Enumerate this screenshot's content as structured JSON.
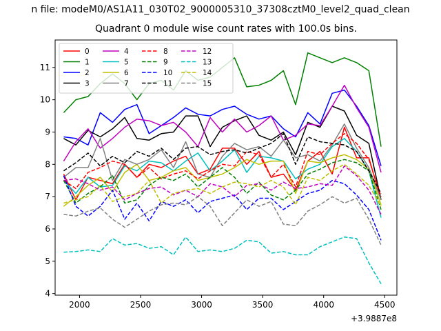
{
  "suptitle": "n file: modeM0/AS1A11_030T02_9000005310_37308cztM0_level2_quad_clean",
  "chart_data": {
    "type": "line",
    "title": "Quadrant 0 module wise count rates with 100.0s bins.",
    "xlabel": "",
    "ylabel": "",
    "x_offset_label": "+3.9887e8",
    "xlim": [
      1800,
      4600
    ],
    "ylim": [
      3.95,
      11.85
    ],
    "xticks": [
      "2000",
      "2500",
      "3000",
      "3500",
      "4000",
      "4500"
    ],
    "yticks": [
      "4",
      "5",
      "6",
      "7",
      "8",
      "9",
      "10",
      "11"
    ],
    "grid": false,
    "legend_position": "upper-left",
    "legend_columns": 4,
    "x": [
      1870,
      1970,
      2070,
      2170,
      2270,
      2370,
      2470,
      2570,
      2670,
      2770,
      2870,
      2970,
      3070,
      3170,
      3270,
      3370,
      3470,
      3570,
      3670,
      3770,
      3870,
      3970,
      4070,
      4170,
      4270,
      4370,
      4470
    ],
    "series": [
      {
        "name": "0",
        "color": "#ff0000",
        "dash": "solid",
        "values": [
          7.7,
          6.9,
          7.6,
          7.5,
          7.4,
          8.0,
          7.6,
          8.0,
          7.9,
          8.1,
          8.25,
          7.7,
          7.85,
          8.5,
          8.5,
          8.0,
          8.4,
          7.6,
          7.7,
          7.2,
          8.1,
          8.4,
          7.7,
          9.15,
          8.2,
          8.2,
          6.9
        ]
      },
      {
        "name": "1",
        "color": "#008000",
        "dash": "solid",
        "values": [
          9.6,
          10.0,
          10.1,
          10.5,
          10.8,
          10.5,
          10.0,
          10.5,
          10.6,
          10.3,
          10.9,
          10.6,
          10.7,
          11.0,
          11.3,
          10.4,
          10.45,
          10.6,
          10.9,
          9.85,
          11.45,
          11.3,
          11.15,
          11.3,
          11.15,
          10.9,
          8.55
        ]
      },
      {
        "name": "2",
        "color": "#0000ff",
        "dash": "solid",
        "values": [
          8.85,
          8.8,
          8.6,
          9.6,
          9.3,
          9.7,
          9.85,
          8.95,
          9.2,
          9.45,
          9.75,
          9.55,
          9.5,
          9.7,
          9.8,
          9.55,
          9.4,
          9.5,
          9.1,
          8.85,
          9.6,
          9.25,
          10.2,
          10.3,
          9.8,
          9.2,
          7.95
        ]
      },
      {
        "name": "3",
        "color": "#000000",
        "dash": "solid",
        "values": [
          8.8,
          8.6,
          9.05,
          8.85,
          9.1,
          9.45,
          8.8,
          8.75,
          8.95,
          9.0,
          9.5,
          9.5,
          8.55,
          9.15,
          9.35,
          9.5,
          8.9,
          8.75,
          9.0,
          8.3,
          9.3,
          9.15,
          9.8,
          9.65,
          8.9,
          8.65,
          6.9
        ]
      },
      {
        "name": "4",
        "color": "#bf00bf",
        "dash": "solid",
        "values": [
          8.1,
          8.7,
          9.1,
          8.5,
          8.8,
          9.15,
          9.4,
          9.35,
          9.2,
          9.3,
          9.0,
          8.55,
          9.45,
          9.0,
          9.4,
          9.0,
          9.2,
          9.5,
          8.75,
          8.9,
          9.25,
          9.2,
          9.8,
          10.45,
          9.75,
          9.15,
          7.75
        ]
      },
      {
        "name": "5",
        "color": "#00bfbf",
        "dash": "solid",
        "values": [
          7.5,
          7.1,
          7.6,
          7.3,
          7.35,
          7.95,
          7.8,
          8.1,
          8.05,
          7.8,
          8.1,
          8.35,
          7.8,
          8.1,
          8.45,
          7.75,
          8.25,
          8.2,
          8.1,
          7.55,
          7.85,
          8.0,
          8.55,
          8.8,
          8.4,
          7.8,
          6.35
        ]
      },
      {
        "name": "6",
        "color": "#bfbf00",
        "dash": "solid",
        "values": [
          6.7,
          7.0,
          7.35,
          7.6,
          7.15,
          7.75,
          8.0,
          7.5,
          7.6,
          7.8,
          7.9,
          7.5,
          7.6,
          7.7,
          7.9,
          8.15,
          8.0,
          8.1,
          8.1,
          7.1,
          8.1,
          8.05,
          8.2,
          8.3,
          8.15,
          7.85,
          6.75
        ]
      },
      {
        "name": "7",
        "color": "#808080",
        "dash": "solid",
        "values": [
          7.6,
          7.9,
          7.9,
          8.8,
          7.5,
          8.15,
          8.0,
          8.15,
          8.45,
          7.9,
          8.7,
          7.7,
          7.6,
          8.25,
          8.65,
          8.45,
          8.55,
          8.25,
          8.75,
          8.2,
          8.3,
          8.1,
          8.6,
          9.25,
          8.5,
          7.9,
          6.9
        ]
      },
      {
        "name": "8",
        "color": "#ff0000",
        "dash": "dashed",
        "values": [
          7.5,
          7.25,
          7.75,
          7.9,
          8.1,
          8.0,
          7.6,
          7.9,
          7.55,
          7.7,
          7.8,
          7.55,
          7.8,
          8.0,
          7.95,
          8.4,
          8.3,
          7.6,
          8.0,
          7.3,
          8.4,
          8.3,
          8.65,
          8.95,
          8.65,
          8.15,
          7.0
        ]
      },
      {
        "name": "9",
        "color": "#008000",
        "dash": "dashed",
        "values": [
          7.5,
          6.8,
          7.1,
          7.3,
          7.65,
          6.8,
          6.9,
          7.35,
          7.6,
          7.5,
          7.7,
          7.3,
          7.6,
          7.9,
          7.6,
          7.1,
          7.45,
          7.05,
          6.9,
          7.2,
          7.7,
          7.85,
          8.05,
          8.15,
          8.05,
          7.8,
          6.6
        ]
      },
      {
        "name": "10",
        "color": "#0000ff",
        "dash": "dashed",
        "values": [
          7.65,
          6.7,
          6.4,
          6.7,
          7.2,
          6.3,
          6.8,
          6.25,
          6.85,
          6.7,
          6.9,
          6.5,
          6.85,
          6.95,
          7.05,
          6.6,
          6.95,
          6.95,
          6.6,
          6.85,
          7.1,
          7.2,
          7.5,
          7.4,
          7.05,
          6.6,
          5.65
        ]
      },
      {
        "name": "11",
        "color": "#000000",
        "dash": "dashed",
        "values": [
          7.8,
          8.05,
          8.35,
          7.95,
          8.25,
          8.05,
          8.4,
          8.25,
          8.5,
          8.15,
          8.5,
          8.55,
          8.3,
          8.4,
          8.45,
          8.35,
          8.5,
          8.65,
          8.95,
          8.0,
          8.85,
          8.7,
          8.65,
          8.6,
          8.4,
          7.8,
          7.1
        ]
      },
      {
        "name": "12",
        "color": "#bf00bf",
        "dash": "dashed",
        "values": [
          7.5,
          7.55,
          7.4,
          7.2,
          7.3,
          6.9,
          7.1,
          7.25,
          7.3,
          7.05,
          7.2,
          7.0,
          7.4,
          7.3,
          7.0,
          7.35,
          7.4,
          7.2,
          7.45,
          7.25,
          7.3,
          7.4,
          7.35,
          7.95,
          7.65,
          7.2,
          6.45
        ]
      },
      {
        "name": "13",
        "color": "#00bfbf",
        "dash": "dashed",
        "values": [
          5.28,
          5.3,
          5.35,
          5.3,
          5.7,
          5.5,
          5.55,
          5.4,
          5.45,
          5.2,
          5.75,
          5.3,
          5.35,
          5.3,
          5.4,
          5.65,
          5.6,
          5.25,
          5.3,
          5.2,
          5.2,
          5.45,
          5.6,
          5.75,
          5.7,
          4.95,
          4.3
        ]
      },
      {
        "name": "14",
        "color": "#bfbf00",
        "dash": "dashed",
        "values": [
          6.8,
          6.9,
          7.0,
          7.35,
          6.85,
          7.0,
          7.1,
          7.5,
          6.8,
          7.1,
          7.2,
          7.25,
          7.1,
          7.3,
          7.45,
          7.4,
          7.3,
          7.5,
          7.3,
          6.75,
          7.6,
          7.5,
          7.8,
          8.0,
          7.7,
          7.35,
          6.7
        ]
      },
      {
        "name": "15",
        "color": "#808080",
        "dash": "dashed",
        "values": [
          6.45,
          6.4,
          6.55,
          6.65,
          6.3,
          6.05,
          6.3,
          6.55,
          6.75,
          6.8,
          6.75,
          7.0,
          6.7,
          6.1,
          6.5,
          6.9,
          6.7,
          6.85,
          6.15,
          6.1,
          6.55,
          6.75,
          7.0,
          6.8,
          6.95,
          6.3,
          5.5
        ]
      }
    ]
  }
}
